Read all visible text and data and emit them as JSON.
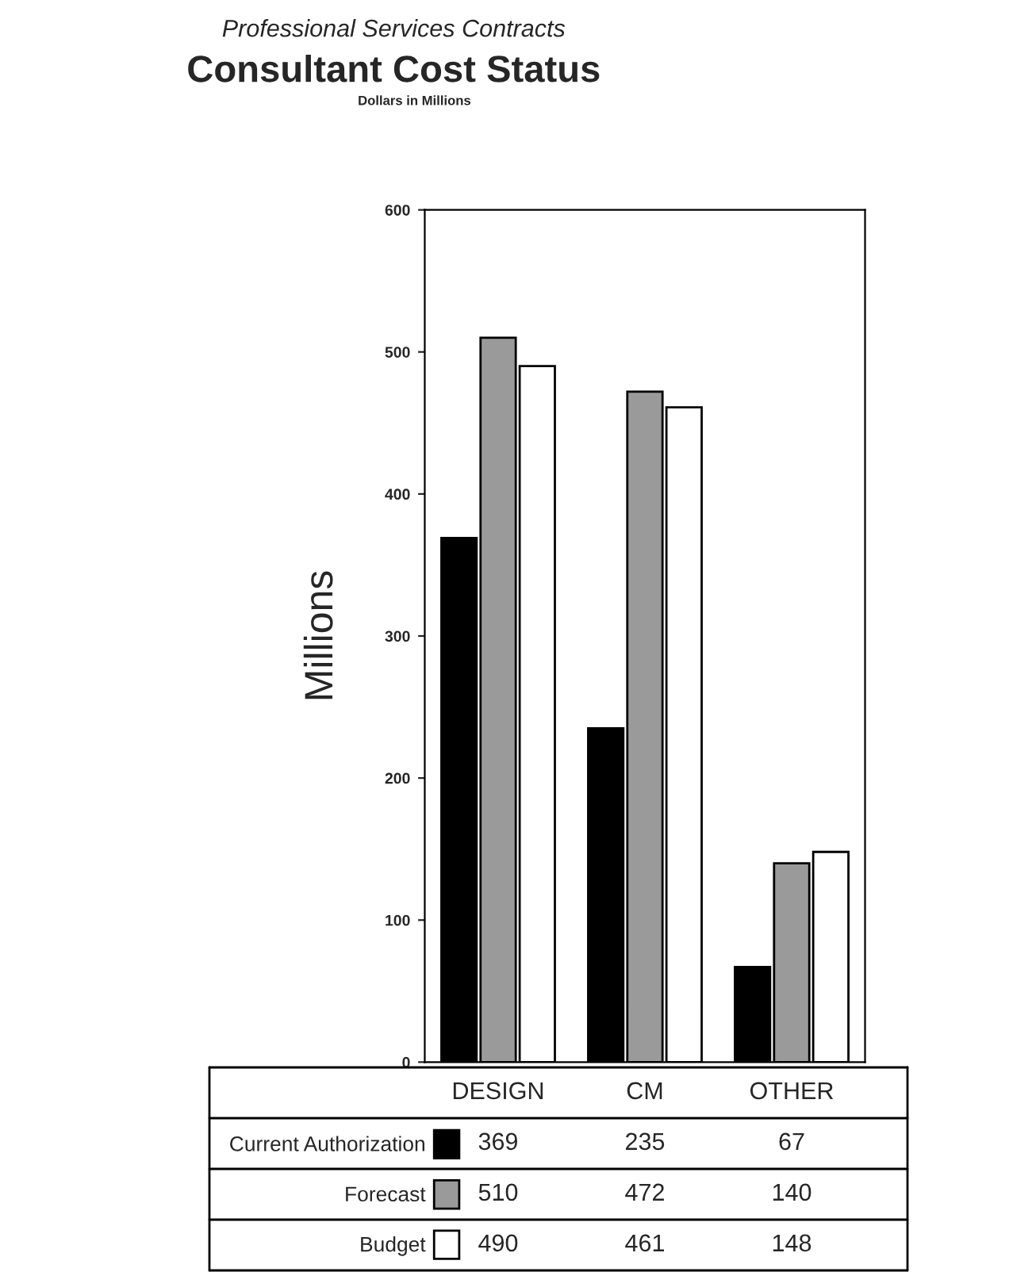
{
  "chart_data": {
    "type": "bar",
    "title": "Consultant Cost Status",
    "subtitle": "Professional Services Contracts",
    "ylabel": "Millions",
    "annotations": [
      "Dollars in Millions"
    ],
    "categories": [
      "DESIGN",
      "CM",
      "OTHER"
    ],
    "series": [
      {
        "name": "Current Authorization",
        "color": "#000000",
        "values": [
          369,
          235,
          67
        ]
      },
      {
        "name": "Forecast",
        "color": "#9a9a9a",
        "values": [
          510,
          472,
          140
        ]
      },
      {
        "name": "Budget",
        "color": "#ffffff",
        "values": [
          490,
          461,
          148
        ]
      }
    ],
    "ylim": [
      0,
      600
    ],
    "yticks": [
      0,
      100,
      200,
      300,
      400,
      500,
      600
    ],
    "data_labels": true,
    "grid": false,
    "legend": "bottom"
  }
}
